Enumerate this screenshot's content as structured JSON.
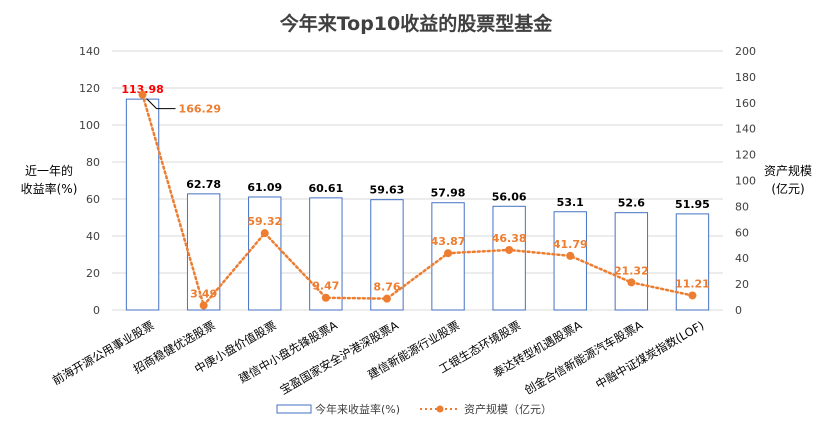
{
  "chart_data": {
    "type": "bar",
    "title": "今年来Top10收益的股票型基金",
    "ylabel_left": [
      "近一年的",
      "收益率(%)"
    ],
    "ylabel_right": [
      "资产规模",
      "(亿元)"
    ],
    "ylim_left": [
      0,
      140
    ],
    "ylim_right": [
      0,
      200
    ],
    "yticks_left": [
      "0",
      "20",
      "40",
      "60",
      "80",
      "100",
      "120",
      "140"
    ],
    "yticks_right": [
      "0",
      "20",
      "40",
      "60",
      "80",
      "100",
      "120",
      "140",
      "160",
      "180",
      "200"
    ],
    "categories": [
      "前海开源公用事业股票",
      "招商稳健优选股票",
      "中庚小盘价值股票",
      "建信中小盘先锋股票A",
      "宝盈国家安全沪港深股票A",
      "建信新能源行业股票",
      "工银生态环境股票",
      "泰达转型机遇股票A",
      "创金合信新能源汽车股票A",
      "中融中证煤炭指数(LOF)"
    ],
    "series": [
      {
        "name": "今年来收益率(%)",
        "kind": "bar",
        "axis": "left",
        "color": "#4472C4",
        "values": [
          113.98,
          62.78,
          61.09,
          60.61,
          59.63,
          57.98,
          56.06,
          53.1,
          52.6,
          51.95
        ],
        "labels": [
          "113.98",
          "62.78",
          "61.09",
          "60.61",
          "59.63",
          "57.98",
          "56.06",
          "53.1",
          "52.6",
          "51.95"
        ]
      },
      {
        "name": "资产规模（亿元）",
        "kind": "line",
        "axis": "right",
        "color": "#ED7D31",
        "values": [
          166.29,
          3.49,
          59.32,
          9.47,
          8.76,
          43.87,
          46.38,
          41.79,
          21.32,
          11.21
        ],
        "labels": [
          "166.29",
          "3.49",
          "59.32",
          "9.47",
          "8.76",
          "43.87",
          "46.38",
          "41.79",
          "21.32",
          "11.21"
        ]
      }
    ],
    "highlight_color": "#FF0000",
    "grid": true,
    "legend_position": "bottom"
  }
}
